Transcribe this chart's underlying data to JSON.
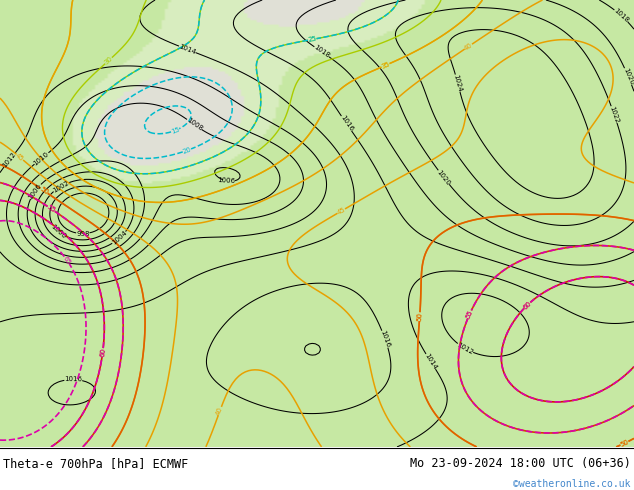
{
  "title_left": "Theta-e 700hPa [hPa] ECMWF",
  "title_right": "Mo 23-09-2024 18:00 UTC (06+36)",
  "credit": "©weatheronline.co.uk",
  "title_fontsize": 8.5,
  "credit_color": "#4488cc",
  "credit_fontsize": 7.0,
  "map_bg": "#e8e8e0",
  "green_color": "#c8e8a8"
}
